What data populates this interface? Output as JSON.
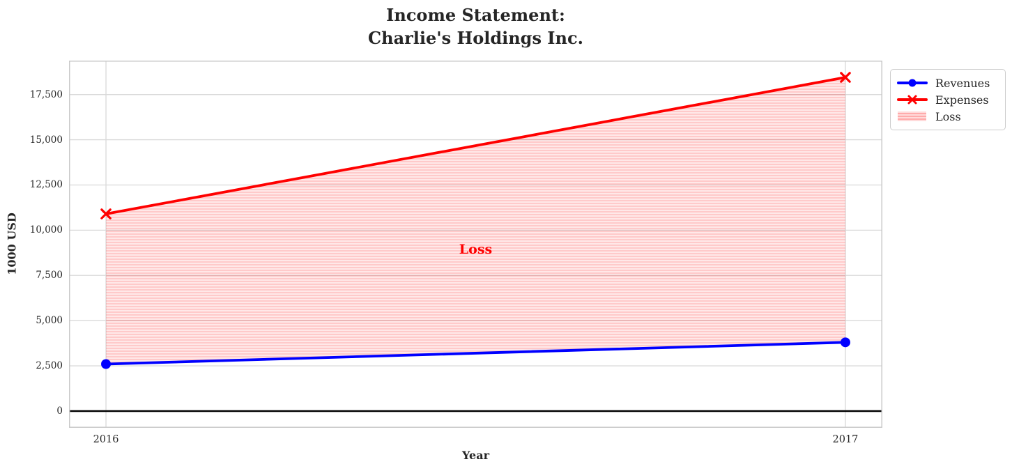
{
  "title": {
    "line1": "Income Statement:",
    "line2": "Charlie's Holdings Inc."
  },
  "axes": {
    "xlabel": "Year",
    "ylabel": "1000 USD"
  },
  "legend": {
    "items": [
      {
        "label": "Revenues",
        "type": "line-circle",
        "color": "#0000ff"
      },
      {
        "label": "Expenses",
        "type": "line-x",
        "color": "#ff0000"
      },
      {
        "label": "Loss",
        "type": "patch",
        "color": "#ff0000"
      }
    ]
  },
  "colors": {
    "revenues": "#0000ff",
    "expenses": "#ff0000",
    "loss_fill_bg": "rgba(255,0,0,0.09)",
    "loss_fill_stripe": "rgba(255,0,0,0.13)",
    "grid": "#d9d9d9",
    "spine": "#c9c9c9",
    "zero_line": "#000000",
    "text": "#262626",
    "annotation": "#ff0000"
  },
  "chart_data": {
    "type": "line",
    "title": "Income Statement: Charlie's Holdings Inc.",
    "xlabel": "Year",
    "ylabel": "1000 USD",
    "x": [
      2016,
      2017
    ],
    "series": [
      {
        "name": "Revenues",
        "color": "#0000ff",
        "marker": "circle",
        "values": [
          2600,
          3800
        ]
      },
      {
        "name": "Expenses",
        "color": "#ff0000",
        "marker": "x",
        "values": [
          10900,
          18450
        ]
      }
    ],
    "loss_area": {
      "label": "Loss",
      "lower_series": "Revenues",
      "upper_series": "Expenses"
    },
    "annotation": {
      "text": "Loss",
      "x": 2016.5,
      "y": 8950
    },
    "xlim": [
      2015.95,
      2017.05
    ],
    "ylim": [
      -925,
      19375
    ],
    "xticks": [
      2016,
      2017
    ],
    "xtick_labels": [
      "2016",
      "2017"
    ],
    "yticks": [
      0,
      2500,
      5000,
      7500,
      10000,
      12500,
      15000,
      17500
    ],
    "ytick_labels": [
      "0",
      "2,500",
      "5,000",
      "7,500",
      "10,000",
      "12,500",
      "15,000",
      "17,500"
    ],
    "grid": true,
    "zero_line_y": 0,
    "legend_position": "outside upper right"
  }
}
